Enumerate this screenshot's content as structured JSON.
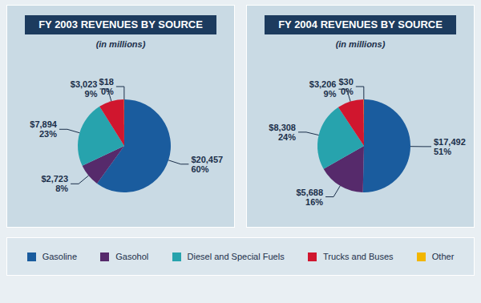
{
  "chart_data": [
    {
      "type": "pie",
      "title": "FY 2003 REVENUES BY SOURCE",
      "subtitle": "(in millions)",
      "categories": [
        "Gasoline",
        "Gasohol",
        "Diesel and Special Fuels",
        "Trucks and Buses",
        "Other"
      ],
      "values": [
        20457,
        2723,
        7894,
        3023,
        18
      ],
      "value_labels": [
        "$20,457",
        "$2,723",
        "$7,894",
        "$3,023",
        "$18"
      ],
      "percent_labels": [
        "60%",
        "8%",
        "23%",
        "9%",
        "0%"
      ],
      "colors": [
        "#1a5c9e",
        "#562a6b",
        "#27a3ad",
        "#d0162e",
        "#f2b600"
      ],
      "data_labels": true,
      "legend": "bottom"
    },
    {
      "type": "pie",
      "title": "FY 2004 REVENUES BY SOURCE",
      "subtitle": "(in millions)",
      "categories": [
        "Gasoline",
        "Gasohol",
        "Diesel and Special Fuels",
        "Trucks and Buses",
        "Other"
      ],
      "values": [
        17492,
        5688,
        8308,
        3206,
        30
      ],
      "value_labels": [
        "$17,492",
        "$5,688",
        "$8,308",
        "$3,206",
        "$30"
      ],
      "percent_labels": [
        "51%",
        "16%",
        "24%",
        "9%",
        "0%"
      ],
      "colors": [
        "#1a5c9e",
        "#562a6b",
        "#27a3ad",
        "#d0162e",
        "#f2b600"
      ],
      "data_labels": true,
      "legend": "bottom"
    }
  ]
}
